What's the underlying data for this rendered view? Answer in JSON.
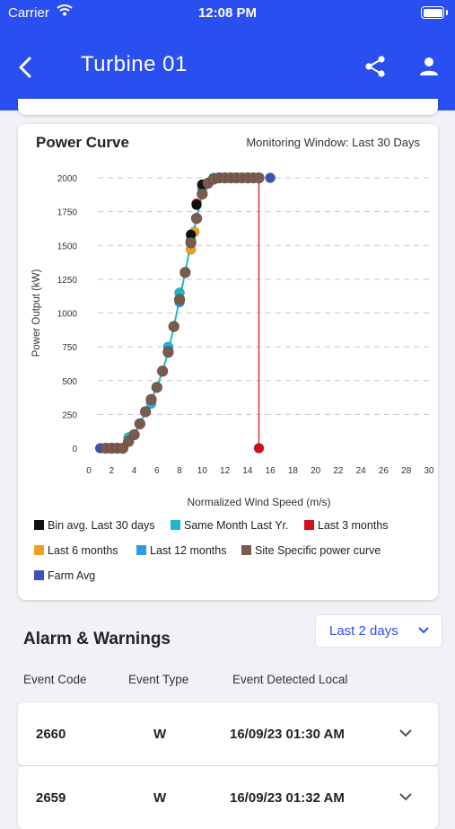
{
  "status_bar": {
    "carrier": "Carrier",
    "time": "12:08 PM"
  },
  "header": {
    "title": "Turbine 01",
    "back_icon": "chevron-left-icon",
    "share_icon": "share-icon",
    "user_icon": "user-icon"
  },
  "power_curve": {
    "title": "Power Curve",
    "window_label": "Monitoring Window: Last 30 Days"
  },
  "chart_data": {
    "type": "scatter",
    "xlabel": "Normalized Wind Speed (m/s)",
    "ylabel": "Power Output (kW)",
    "xlim": [
      0,
      30
    ],
    "ylim": [
      0,
      2000
    ],
    "x_ticks": [
      "0",
      "2",
      "4",
      "6",
      "8",
      "10",
      "12",
      "14",
      "16",
      "18",
      "20",
      "22",
      "24",
      "26",
      "28",
      "30"
    ],
    "y_ticks": [
      "0",
      "250",
      "500",
      "750",
      "1000",
      "1250",
      "1500",
      "1750",
      "2000"
    ],
    "grid": "horizontal dashed",
    "legend_position": "bottom",
    "series": [
      {
        "name": "Bin avg. Last 30 days",
        "color": "#111111",
        "x": [
          9,
          9.5,
          10
        ],
        "y": [
          1580,
          1800,
          1950
        ]
      },
      {
        "name": "Same Month Last Yr.",
        "color": "#1fb8c8",
        "x": [
          3.5,
          5.5,
          7,
          8,
          9,
          10,
          11
        ],
        "y": [
          80,
          330,
          750,
          1150,
          1540,
          1920,
          2000
        ]
      },
      {
        "name": "Last 3 months",
        "color": "#d0101e",
        "x": [
          9.5,
          10,
          15
        ],
        "y": [
          1810,
          1950,
          0
        ]
      },
      {
        "name": "Last 6 months",
        "color": "#f0a020",
        "x": [
          9,
          9.3
        ],
        "y": [
          1470,
          1600
        ]
      },
      {
        "name": "Last 12 months",
        "color": "#2e9be8",
        "x": [
          7,
          8,
          9
        ],
        "y": [
          720,
          1080,
          1520
        ]
      },
      {
        "name": "Site Specific power curve",
        "color": "#7a5a4c",
        "x": [
          1.5,
          2,
          2.5,
          3,
          3.5,
          4,
          4.5,
          5,
          5.5,
          6,
          6.5,
          7,
          7.5,
          8,
          8.5,
          9,
          9.5,
          10,
          10.5,
          11,
          11.5,
          12,
          12.5,
          13,
          13.5,
          14,
          14.5,
          15
        ],
        "y": [
          0,
          0,
          0,
          0,
          50,
          100,
          180,
          270,
          360,
          450,
          570,
          710,
          900,
          1100,
          1300,
          1520,
          1700,
          1880,
          1960,
          1990,
          2000,
          2000,
          2000,
          2000,
          2000,
          2000,
          2000,
          2000
        ]
      },
      {
        "name": "Farm Avg",
        "color": "#3f51b5",
        "x": [
          1,
          1.5,
          2,
          2.5,
          16
        ],
        "y": [
          0,
          0,
          0,
          0,
          2000
        ]
      }
    ]
  },
  "alarms": {
    "title": "Alarm & Warnings",
    "range_label": "Last 2 days",
    "columns": [
      "Event Code",
      "Event Type",
      "Event Detected Local"
    ],
    "rows": [
      {
        "code": "2660",
        "type": "W",
        "time": "16/09/23 01:30 AM"
      },
      {
        "code": "2659",
        "type": "W",
        "time": "16/09/23 01:32 AM"
      }
    ]
  }
}
